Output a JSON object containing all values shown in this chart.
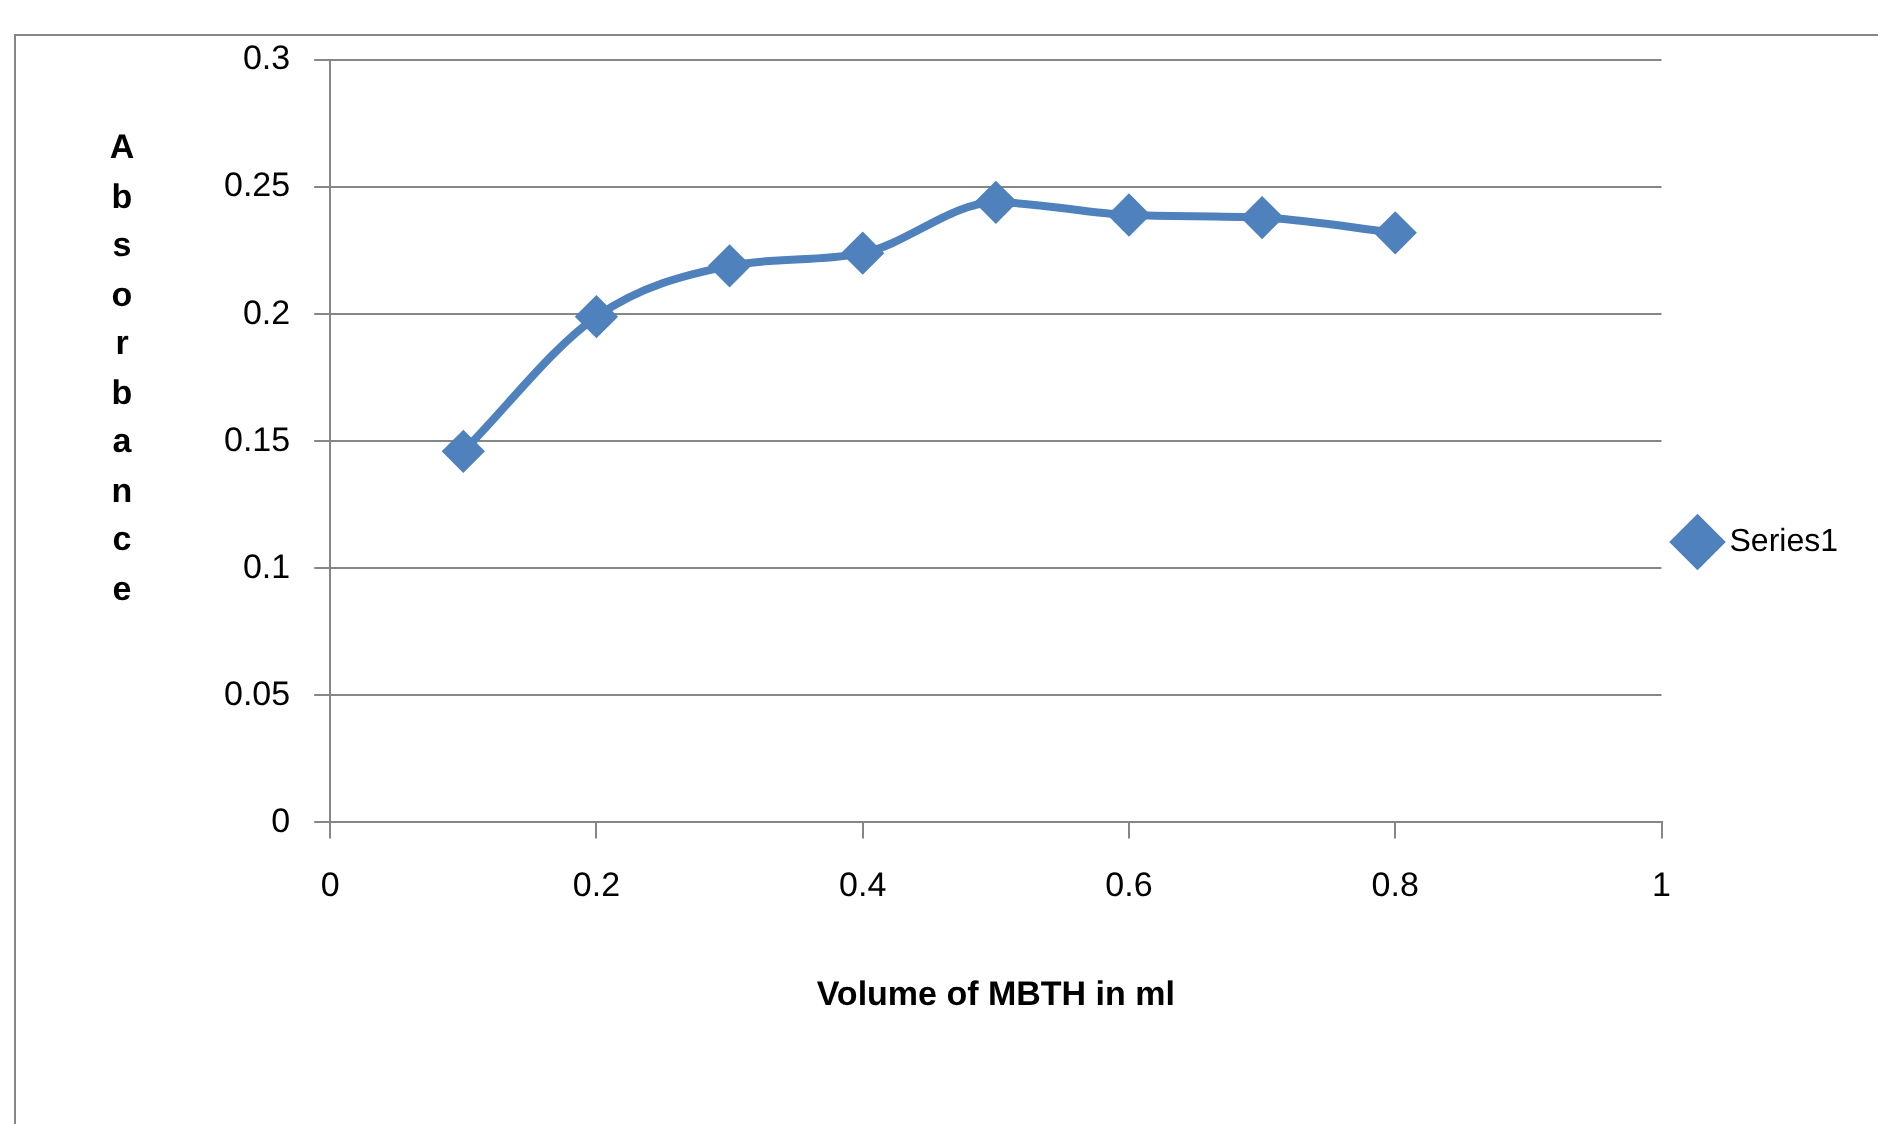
{
  "chart_data": {
    "type": "line",
    "xlabel": "Volume of MBTH in ml",
    "ylabel": "Absorbance",
    "x": [
      0.1,
      0.2,
      0.3,
      0.4,
      0.5,
      0.6,
      0.7,
      0.8
    ],
    "series": [
      {
        "name": "Series1",
        "color": "#4f81bd",
        "values": [
          0.146,
          0.199,
          0.219,
          0.224,
          0.244,
          0.239,
          0.238,
          0.232
        ]
      }
    ],
    "xlim": [
      0,
      1
    ],
    "xticks": [
      0,
      0.2,
      0.4,
      0.6,
      0.8,
      1
    ],
    "ylim": [
      0,
      0.3
    ],
    "yticks": [
      0,
      0.05,
      0.1,
      0.15,
      0.2,
      0.25,
      0.3
    ],
    "grid": "y",
    "legend": "right",
    "marker": "diamond",
    "line_style": "solid"
  }
}
